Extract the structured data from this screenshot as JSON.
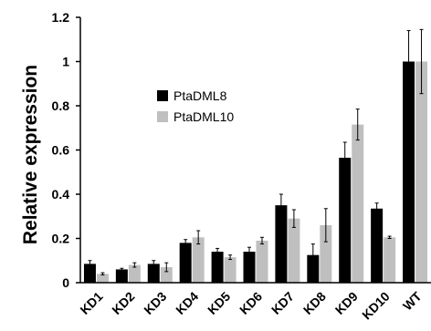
{
  "chart_data": {
    "type": "bar",
    "ylabel": "Relative expression",
    "xlabel": "",
    "ylim": [
      0,
      1.2
    ],
    "yticks": [
      "0",
      "0.2",
      "0.4",
      "0.6",
      "0.8",
      "1",
      "1.2"
    ],
    "categories": [
      "KD1",
      "KD2",
      "KD3",
      "KD4",
      "KD5",
      "KD6",
      "KD7",
      "KD8",
      "KD9",
      "KD10",
      "WT"
    ],
    "series": [
      {
        "name": "PtaDML8",
        "color": "#000000",
        "values": [
          0.085,
          0.06,
          0.085,
          0.18,
          0.14,
          0.14,
          0.35,
          0.125,
          0.565,
          0.335,
          1.0
        ],
        "errors": [
          0.015,
          0.005,
          0.015,
          0.015,
          0.015,
          0.02,
          0.05,
          0.05,
          0.07,
          0.025,
          0.14
        ]
      },
      {
        "name": "PtaDML10",
        "color": "#bfbfbf",
        "values": [
          0.04,
          0.08,
          0.07,
          0.205,
          0.115,
          0.19,
          0.29,
          0.26,
          0.715,
          0.205,
          1.0
        ],
        "errors": [
          0.005,
          0.01,
          0.02,
          0.03,
          0.01,
          0.015,
          0.04,
          0.075,
          0.07,
          0.005,
          0.145
        ]
      }
    ],
    "legend_position": "upper-left",
    "grid": false
  }
}
